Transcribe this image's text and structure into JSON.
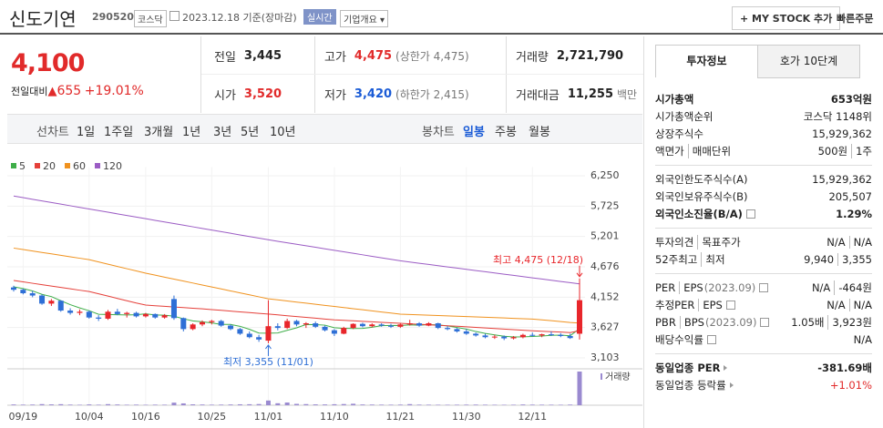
{
  "header": {
    "name": "신도기연",
    "code": "290520",
    "market": "코스닥",
    "date": "2023.12.18",
    "basis": "기준(장마감)",
    "realtime": "실시간",
    "overview": "기업개요",
    "mystock": "+ MY STOCK 추가",
    "quick_order": "빠른주문"
  },
  "quote": {
    "price": "4,100",
    "change_label": "전일대비",
    "change": "655",
    "change_pct": "+19.01%",
    "stats": [
      {
        "label": "전일",
        "value": "3,445"
      },
      {
        "label": "고가",
        "value": "4,475",
        "note": "(상한가 4,475)",
        "color": "#e12a2a"
      },
      {
        "label": "거래량",
        "value": "2,721,790"
      },
      {
        "label": "시가",
        "value": "3,520",
        "color": "#e12a2a"
      },
      {
        "label": "저가",
        "value": "3,420",
        "note": "(하한가 2,415)",
        "color": "#1a5bd6"
      },
      {
        "label": "거래대금",
        "value": "11,255",
        "note": "백만"
      }
    ]
  },
  "tabs": {
    "line_chart": {
      "label": "선차트",
      "periods": [
        "1일",
        "1주일",
        "3개월",
        "1년",
        "3년",
        "5년",
        "10년"
      ]
    },
    "candle_chart": {
      "label": "봉차트",
      "periods": [
        "일봉",
        "주봉",
        "월봉"
      ],
      "active": 0
    }
  },
  "chart_data": {
    "type": "candlestick",
    "categories": [
      null,
      "09/19",
      null,
      null,
      null,
      null,
      null,
      null,
      "10/04",
      null,
      null,
      null,
      null,
      null,
      "10/16",
      null,
      null,
      null,
      null,
      null,
      null,
      "10/25",
      null,
      null,
      null,
      null,
      null,
      "11/01",
      null,
      null,
      null,
      null,
      null,
      null,
      "11/10",
      null,
      null,
      null,
      null,
      null,
      null,
      "11/21",
      null,
      null,
      null,
      null,
      null,
      null,
      "11/30",
      null,
      null,
      null,
      null,
      null,
      null,
      "12/11",
      null,
      null,
      null,
      null,
      null
    ],
    "open": [
      4320,
      4280,
      4220,
      4180,
      4040,
      4090,
      3920,
      3880,
      3900,
      3800,
      3780,
      3900,
      3860,
      3880,
      3820,
      3860,
      3800,
      4120,
      3790,
      3600,
      3680,
      3720,
      3740,
      3660,
      3600,
      3520,
      3460,
      3400,
      3650,
      3620,
      3740,
      3680,
      3700,
      3640,
      3580,
      3520,
      3620,
      3690,
      3650,
      3680,
      3660,
      3640,
      3680,
      3700,
      3660,
      3700,
      3620,
      3600,
      3560,
      3520,
      3490,
      3460,
      3470,
      3440,
      3460,
      3500,
      3490,
      3510,
      3500,
      3480,
      3520
    ],
    "high": [
      4350,
      4300,
      4260,
      4200,
      4120,
      4100,
      3960,
      3940,
      3920,
      3840,
      3930,
      3950,
      3900,
      3900,
      3880,
      3870,
      3860,
      4180,
      3800,
      3700,
      3750,
      3760,
      3760,
      3680,
      3620,
      3560,
      3500,
      4100,
      3700,
      3780,
      3760,
      3720,
      3730,
      3660,
      3600,
      3640,
      3700,
      3710,
      3700,
      3700,
      3690,
      3700,
      3760,
      3720,
      3720,
      3710,
      3650,
      3620,
      3600,
      3540,
      3520,
      3500,
      3490,
      3480,
      3520,
      3540,
      3520,
      3560,
      3530,
      3520,
      4475
    ],
    "low": [
      4250,
      4200,
      4150,
      4020,
      4000,
      3900,
      3850,
      3840,
      3780,
      3740,
      3760,
      3840,
      3800,
      3800,
      3800,
      3780,
      3780,
      3760,
      3560,
      3580,
      3650,
      3680,
      3640,
      3580,
      3500,
      3440,
      3380,
      3355,
      3580,
      3600,
      3650,
      3620,
      3620,
      3560,
      3480,
      3510,
      3600,
      3630,
      3630,
      3640,
      3620,
      3620,
      3660,
      3640,
      3650,
      3600,
      3580,
      3540,
      3500,
      3470,
      3440,
      3430,
      3410,
      3420,
      3440,
      3470,
      3460,
      3480,
      3460,
      3430,
      3420
    ],
    "close": [
      4280,
      4220,
      4180,
      4040,
      4090,
      3920,
      3880,
      3900,
      3800,
      3780,
      3900,
      3860,
      3880,
      3820,
      3860,
      3800,
      3840,
      3790,
      3600,
      3680,
      3720,
      3740,
      3660,
      3600,
      3520,
      3460,
      3420,
      3650,
      3620,
      3740,
      3680,
      3700,
      3640,
      3580,
      3520,
      3620,
      3690,
      3650,
      3680,
      3660,
      3640,
      3680,
      3700,
      3660,
      3700,
      3620,
      3600,
      3560,
      3520,
      3490,
      3460,
      3470,
      3440,
      3460,
      3500,
      3490,
      3510,
      3500,
      3480,
      3445,
      4100
    ],
    "volume": [
      62000,
      48000,
      55000,
      90000,
      70000,
      85000,
      52000,
      40000,
      66000,
      45000,
      88000,
      60000,
      42000,
      50000,
      38000,
      47000,
      44000,
      210000,
      150000,
      72000,
      58000,
      46000,
      51000,
      60000,
      75000,
      80000,
      95000,
      380000,
      160000,
      220000,
      110000,
      90000,
      70000,
      65000,
      80000,
      95000,
      120000,
      60000,
      55000,
      48000,
      45000,
      52000,
      90000,
      50000,
      46000,
      42000,
      40000,
      44000,
      48000,
      52000,
      45000,
      40000,
      38000,
      42000,
      60000,
      50000,
      46000,
      44000,
      40000,
      52000,
      2721790
    ],
    "volume_label": "거래량",
    "volume_color": "#9a8ad0",
    "up_color": "#e8262b",
    "down_color": "#2e6fd6",
    "moving_averages": [
      {
        "name": "5",
        "color": "#3fae49",
        "values": [
          4330,
          4300,
          4260,
          4200,
          4162,
          4090,
          4022,
          3966,
          3918,
          3856,
          3852,
          3848,
          3844,
          3848,
          3864,
          3844,
          3840,
          3822,
          3778,
          3742,
          3726,
          3706,
          3680,
          3680,
          3648,
          3596,
          3532,
          3530,
          3534,
          3578,
          3622,
          3678,
          3676,
          3668,
          3624,
          3612,
          3610,
          3612,
          3632,
          3660,
          3664,
          3662,
          3672,
          3668,
          3676,
          3672,
          3656,
          3628,
          3600,
          3558,
          3526,
          3500,
          3476,
          3464,
          3466,
          3472,
          3480,
          3492,
          3496,
          3485,
          3607
        ]
      },
      {
        "name": "20",
        "color": "#e5403a",
        "values": [
          4440,
          4416,
          4392,
          4368,
          4344,
          4320,
          4296,
          4272,
          4250,
          4210,
          4170,
          4130,
          4090,
          4050,
          4015,
          4004,
          3993,
          3982,
          3972,
          3961,
          3950,
          3937,
          3924,
          3911,
          3898,
          3885,
          3872,
          3860,
          3846,
          3831,
          3817,
          3803,
          3789,
          3774,
          3760,
          3751,
          3743,
          3734,
          3726,
          3717,
          3709,
          3700,
          3691,
          3683,
          3674,
          3666,
          3657,
          3649,
          3640,
          3630,
          3620,
          3610,
          3600,
          3590,
          3580,
          3570,
          3562,
          3555,
          3548,
          3540,
          3572
        ]
      },
      {
        "name": "60",
        "color": "#f0921e",
        "values": [
          5000,
          4975,
          4950,
          4925,
          4900,
          4875,
          4850,
          4825,
          4800,
          4761,
          4722,
          4683,
          4644,
          4605,
          4566,
          4532,
          4498,
          4464,
          4430,
          4396,
          4362,
          4328,
          4294,
          4260,
          4226,
          4192,
          4158,
          4124,
          4105,
          4086,
          4067,
          4048,
          4029,
          4010,
          3991,
          3972,
          3953,
          3934,
          3915,
          3896,
          3877,
          3858,
          3852,
          3846,
          3840,
          3834,
          3828,
          3822,
          3816,
          3810,
          3804,
          3798,
          3792,
          3786,
          3780,
          3774,
          3760,
          3745,
          3730,
          3715,
          3705
        ]
      },
      {
        "name": "120",
        "color": "#9b5cc4",
        "values": [
          5900,
          5872,
          5844,
          5816,
          5788,
          5760,
          5732,
          5704,
          5676,
          5648,
          5620,
          5592,
          5564,
          5536,
          5508,
          5480,
          5452,
          5424,
          5396,
          5368,
          5340,
          5312,
          5284,
          5256,
          5228,
          5200,
          5172,
          5144,
          5118,
          5092,
          5066,
          5040,
          5014,
          4988,
          4962,
          4936,
          4910,
          4884,
          4858,
          4832,
          4806,
          4780,
          4759,
          4738,
          4717,
          4696,
          4675,
          4654,
          4633,
          4612,
          4591,
          4570,
          4549,
          4528,
          4507,
          4486,
          4465,
          4444,
          4423,
          4402,
          4381
        ]
      }
    ],
    "ylim": [
      3000,
      6400
    ],
    "yticks": [
      {
        "value": 3103,
        "label": "3,103"
      },
      {
        "value": 3627,
        "label": "3,627"
      },
      {
        "value": 4152,
        "label": "4,152"
      },
      {
        "value": 4676,
        "label": "4,676"
      },
      {
        "value": 5201,
        "label": "5,201"
      },
      {
        "value": 5725,
        "label": "5,725"
      },
      {
        "value": 6250,
        "label": "6,250"
      }
    ],
    "grid": true,
    "annotations": {
      "high": "최고 4,475 (12/18)",
      "low": "최저 3,355 (11/01)"
    }
  },
  "side_panel": {
    "tabs": [
      "투자정보",
      "호가 10단계"
    ],
    "groups": [
      [
        {
          "label": [
            "시가총액"
          ],
          "value": [
            "653억원"
          ],
          "bold": true
        },
        {
          "label": [
            "시가총액순위"
          ],
          "value": [
            "코스닥 1148위"
          ]
        },
        {
          "label": [
            "상장주식수"
          ],
          "value": [
            "15,929,362"
          ]
        },
        {
          "label": [
            "액면가",
            "매매단위"
          ],
          "value": [
            "500원",
            "1주"
          ]
        }
      ],
      [
        {
          "label": [
            "외국인한도주식수(A)"
          ],
          "value": [
            "15,929,362"
          ]
        },
        {
          "label": [
            "외국인보유주식수(B)"
          ],
          "value": [
            "205,507"
          ]
        },
        {
          "label": [
            "외국인소진율(B/A)"
          ],
          "value": [
            "1.29%"
          ],
          "bold": true,
          "info": true
        }
      ],
      [
        {
          "label": [
            "투자의견",
            "목표주가"
          ],
          "value": [
            "N/A",
            "N/A"
          ]
        },
        {
          "label": [
            "52주최고",
            "최저"
          ],
          "value": [
            "9,940",
            "3,355"
          ]
        }
      ],
      [
        {
          "label": [
            "PER",
            "EPS"
          ],
          "note": "(2023.09)",
          "value": [
            "N/A",
            "-464원"
          ],
          "info": true
        },
        {
          "label": [
            "추정PER",
            "EPS"
          ],
          "value": [
            "N/A",
            "N/A"
          ],
          "info": true
        },
        {
          "label": [
            "PBR",
            "BPS"
          ],
          "note": "(2023.09)",
          "value": [
            "1.05배",
            "3,923원"
          ],
          "info": true
        },
        {
          "label": [
            "배당수익률"
          ],
          "value": [
            "N/A"
          ],
          "info": true
        }
      ],
      [
        {
          "label": [
            "동일업종 PER"
          ],
          "value": [
            "-381.69배"
          ],
          "bold": true,
          "link": true
        },
        {
          "label": [
            "동일업종 등락률"
          ],
          "value": [
            "+1.01%"
          ],
          "link": true,
          "color": "#e12a2a"
        }
      ]
    ]
  }
}
